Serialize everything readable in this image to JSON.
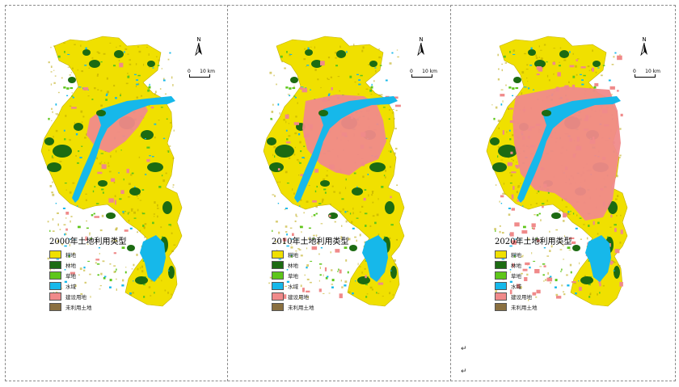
{
  "colors": {
    "cropland": "#f0e000",
    "forest": "#1c6b12",
    "grassland": "#5ec61a",
    "water": "#16b8ea",
    "built_up": "#f08a8a",
    "unused": "#8a7040",
    "map_texture": "#b8a400"
  },
  "maps": [
    {
      "year_title": "2000年土地利用类型",
      "north_label": "N",
      "scale_labels": [
        "0",
        "10 km"
      ],
      "legend": [
        {
          "key": "cropland",
          "label": "耕地"
        },
        {
          "key": "forest",
          "label": "林地"
        },
        {
          "key": "grassland",
          "label": "草地"
        },
        {
          "key": "water",
          "label": "水域"
        },
        {
          "key": "built_up",
          "label": "建设用地"
        },
        {
          "key": "unused",
          "label": "未利用土地"
        }
      ]
    },
    {
      "year_title": "2010年土地利用类型",
      "north_label": "N",
      "scale_labels": [
        "0",
        "10 km"
      ],
      "legend": [
        {
          "key": "cropland",
          "label": "耕地"
        },
        {
          "key": "forest",
          "label": "林地"
        },
        {
          "key": "grassland",
          "label": "草地"
        },
        {
          "key": "water",
          "label": "水域"
        },
        {
          "key": "built_up",
          "label": "建设用地"
        },
        {
          "key": "unused",
          "label": "未利用土地"
        }
      ]
    },
    {
      "year_title": "2020年土地利用类型",
      "north_label": "N",
      "scale_labels": [
        "0",
        "10 km"
      ],
      "legend": [
        {
          "key": "cropland",
          "label": "耕地"
        },
        {
          "key": "forest",
          "label": "林地"
        },
        {
          "key": "grassland",
          "label": "草地"
        },
        {
          "key": "water",
          "label": "水域"
        },
        {
          "key": "built_up",
          "label": "建设用地"
        },
        {
          "key": "unused",
          "label": "未利用土地"
        }
      ]
    }
  ],
  "paragraph_marks": [
    "↵",
    "↵"
  ]
}
